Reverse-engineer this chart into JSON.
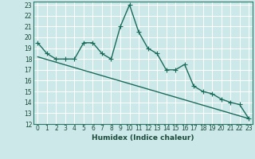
{
  "xlabel": "Humidex (Indice chaleur)",
  "ylabel": "",
  "bg_color": "#cce8e8",
  "grid_color": "#ffffff",
  "line_color": "#1a6b5a",
  "xlim": [
    -0.5,
    23.4
  ],
  "ylim": [
    12,
    23.3
  ],
  "xticks": [
    0,
    1,
    2,
    3,
    4,
    5,
    6,
    7,
    8,
    9,
    10,
    11,
    12,
    13,
    14,
    15,
    16,
    17,
    18,
    19,
    20,
    21,
    22,
    23
  ],
  "yticks": [
    12,
    13,
    14,
    15,
    16,
    17,
    18,
    19,
    20,
    21,
    22,
    23
  ],
  "series1_x": [
    0,
    1,
    2,
    3,
    4,
    5,
    6,
    7,
    8,
    9,
    10,
    11,
    12,
    13,
    14,
    15,
    16,
    17,
    18,
    19,
    20,
    21,
    22,
    23
  ],
  "series1_y": [
    19.5,
    18.5,
    18.0,
    18.0,
    18.0,
    19.5,
    19.5,
    18.5,
    18.0,
    21.0,
    23.0,
    20.5,
    19.0,
    18.5,
    17.0,
    17.0,
    17.5,
    15.5,
    15.0,
    14.8,
    14.3,
    14.0,
    13.8,
    12.5
  ],
  "series2_x": [
    0,
    23
  ],
  "series2_y": [
    18.2,
    12.5
  ],
  "marker_size": 2.5,
  "line_width": 1.0,
  "tick_fontsize": 5.5,
  "xlabel_fontsize": 6.5
}
